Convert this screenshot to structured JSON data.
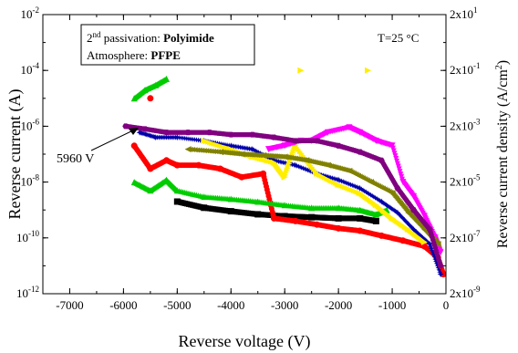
{
  "chart_data": {
    "type": "scatter",
    "xlabel": "Reverse voltage (V)",
    "ylabel_left": "Reverse current (A)",
    "ylabel_right": "Reverse current density (A/cm",
    "ylabel_right_sup": "2",
    "ylabel_right_end": ")",
    "xlim": [
      -7500,
      0
    ],
    "ylim": [
      1e-12,
      0.01
    ],
    "yscale": "log",
    "x_ticks": [
      {
        "value": -7000,
        "label": "-7000"
      },
      {
        "value": -6000,
        "label": "-6000"
      },
      {
        "value": -5000,
        "label": "-5000"
      },
      {
        "value": -4000,
        "label": "-4000"
      },
      {
        "value": -3000,
        "label": "-3000"
      },
      {
        "value": -2000,
        "label": "-2000"
      },
      {
        "value": -1000,
        "label": "-1000"
      },
      {
        "value": 0,
        "label": "0"
      }
    ],
    "y_ticks_left": [
      {
        "exp": -12,
        "base": "10",
        "sup": "-12"
      },
      {
        "exp": -10,
        "base": "10",
        "sup": "-10"
      },
      {
        "exp": -8,
        "base": "10",
        "sup": "-8"
      },
      {
        "exp": -6,
        "base": "10",
        "sup": "-6"
      },
      {
        "exp": -4,
        "base": "10",
        "sup": "-4"
      },
      {
        "exp": -2,
        "base": "10",
        "sup": "-2"
      }
    ],
    "y_ticks_right": [
      {
        "exp": -12,
        "base": "2x10",
        "sup": "-9"
      },
      {
        "exp": -10,
        "base": "2x10",
        "sup": "-7"
      },
      {
        "exp": -8,
        "base": "2x10",
        "sup": "-5"
      },
      {
        "exp": -6,
        "base": "2x10",
        "sup": "-3"
      },
      {
        "exp": -4,
        "base": "2x10",
        "sup": "-1"
      },
      {
        "exp": -2,
        "base": "2x10",
        "sup": "1"
      }
    ],
    "legend": {
      "line1_prefix": "2",
      "line1_sup": "nd",
      "line1_text": " passivation: ",
      "line1_bold": "Polyimide",
      "line2_text": "Atmosphere: ",
      "line2_bold": "PFPE"
    },
    "temperature_label": "T=25 °C",
    "annotation": {
      "text": "5960 V",
      "x": -5960,
      "y": 1e-06
    },
    "series": [
      {
        "color": "#000000",
        "marker": "square",
        "points": [
          [
            -5000,
            2e-09
          ],
          [
            -4500,
            1.2e-09
          ],
          [
            -4000,
            9e-10
          ],
          [
            -3500,
            7e-10
          ],
          [
            -3000,
            6e-10
          ],
          [
            -2500,
            5.5e-10
          ],
          [
            -2000,
            5e-10
          ],
          [
            -1600,
            5e-10
          ],
          [
            -1300,
            4e-10
          ]
        ]
      },
      {
        "color": "#ff0000",
        "marker": "circle",
        "points": [
          [
            -5800,
            2e-07
          ],
          [
            -5500,
            3e-08
          ],
          [
            -5200,
            6e-08
          ],
          [
            -5000,
            4e-08
          ],
          [
            -4600,
            4e-08
          ],
          [
            -4200,
            3e-08
          ],
          [
            -3800,
            1.5e-08
          ],
          [
            -3400,
            2e-08
          ],
          [
            -3200,
            5e-10
          ],
          [
            -2800,
            4e-10
          ],
          [
            -2400,
            3e-10
          ],
          [
            -2000,
            2.2e-10
          ],
          [
            -1600,
            1.8e-10
          ],
          [
            -1200,
            1.2e-10
          ],
          [
            -800,
            8e-11
          ],
          [
            -400,
            5e-11
          ],
          [
            -150,
            2e-11
          ],
          [
            -50,
            5e-12
          ],
          [
            -5500,
            1e-05
          ]
        ]
      },
      {
        "color": "#00cc00",
        "marker": "triangle",
        "points": [
          [
            -5800,
            1e-08
          ],
          [
            -5500,
            5e-09
          ],
          [
            -5200,
            1.2e-08
          ],
          [
            -5000,
            5e-09
          ],
          [
            -4500,
            3e-09
          ],
          [
            -4000,
            2.5e-09
          ],
          [
            -3500,
            2e-09
          ],
          [
            -3000,
            1.5e-09
          ],
          [
            -2500,
            1.2e-09
          ],
          [
            -2000,
            1.2e-09
          ],
          [
            -1600,
            1e-09
          ],
          [
            -1300,
            7e-10
          ],
          [
            -1100,
            1e-09
          ],
          [
            -5800,
            1e-05
          ],
          [
            -5600,
            2e-05
          ],
          [
            -5400,
            3e-05
          ],
          [
            -5200,
            5e-05
          ]
        ]
      },
      {
        "color": "#0000aa",
        "marker": "star",
        "points": [
          [
            -5700,
            6e-07
          ],
          [
            -5400,
            4e-07
          ],
          [
            -5000,
            4e-07
          ],
          [
            -4500,
            3e-07
          ],
          [
            -4000,
            2e-07
          ],
          [
            -3600,
            1.5e-07
          ],
          [
            -3200,
            6e-08
          ],
          [
            -2800,
            4e-08
          ],
          [
            -2400,
            2e-08
          ],
          [
            -2000,
            1.2e-08
          ],
          [
            -1600,
            6e-09
          ],
          [
            -1200,
            2e-09
          ],
          [
            -900,
            8e-10
          ],
          [
            -600,
            2e-10
          ],
          [
            -300,
            6e-11
          ],
          [
            -100,
            5e-12
          ]
        ]
      },
      {
        "color": "#ffee00",
        "marker": "triangle-right",
        "points": [
          [
            -4500,
            3e-07
          ],
          [
            -4000,
            1.5e-07
          ],
          [
            -3600,
            8e-08
          ],
          [
            -3200,
            5e-08
          ],
          [
            -3000,
            1.5e-08
          ],
          [
            -2800,
            2e-07
          ],
          [
            -2400,
            2e-08
          ],
          [
            -2000,
            8e-09
          ],
          [
            -1600,
            4e-09
          ],
          [
            -1300,
            1.5e-09
          ],
          [
            -1000,
            5e-10
          ],
          [
            -700,
            2e-10
          ],
          [
            -400,
            7e-11
          ],
          [
            -2700,
            0.0001
          ],
          [
            -1450,
            0.0001
          ]
        ]
      },
      {
        "color": "#ff00ff",
        "marker": "triangle-down",
        "points": [
          [
            -3300,
            1.5e-07
          ],
          [
            -3000,
            2e-07
          ],
          [
            -2700,
            3e-07
          ],
          [
            -2500,
            3e-07
          ],
          [
            -2200,
            6e-07
          ],
          [
            -1800,
            9e-07
          ],
          [
            -1600,
            6e-07
          ],
          [
            -1300,
            3e-07
          ],
          [
            -1000,
            2e-07
          ],
          [
            -800,
            1e-08
          ],
          [
            -600,
            3e-09
          ],
          [
            -400,
            6e-10
          ],
          [
            -200,
            1e-10
          ],
          [
            -100,
            3e-11
          ]
        ]
      },
      {
        "color": "#808000",
        "marker": "triangle-left",
        "points": [
          [
            -4800,
            1.5e-07
          ],
          [
            -4200,
            1.2e-07
          ],
          [
            -3800,
            1e-07
          ],
          [
            -3400,
            9e-08
          ],
          [
            -3000,
            8e-08
          ],
          [
            -2600,
            6e-08
          ],
          [
            -2200,
            4e-08
          ],
          [
            -1800,
            2.5e-08
          ],
          [
            -1400,
            1e-08
          ],
          [
            -1000,
            4e-09
          ],
          [
            -700,
            8e-10
          ],
          [
            -400,
            2e-10
          ],
          [
            -150,
            6e-11
          ]
        ]
      },
      {
        "color": "#800080",
        "marker": "hexagon",
        "points": [
          [
            -5960,
            1e-06
          ],
          [
            -5600,
            8e-07
          ],
          [
            -5200,
            6e-07
          ],
          [
            -4800,
            6e-07
          ],
          [
            -4400,
            6e-07
          ],
          [
            -4000,
            5e-07
          ],
          [
            -3600,
            5e-07
          ],
          [
            -3200,
            4e-07
          ],
          [
            -2800,
            3e-07
          ],
          [
            -2400,
            3e-07
          ],
          [
            -2000,
            2e-07
          ],
          [
            -1600,
            1.2e-07
          ],
          [
            -1200,
            6e-08
          ],
          [
            -900,
            6e-09
          ],
          [
            -600,
            1e-09
          ],
          [
            -300,
            2e-10
          ],
          [
            -100,
            1e-11
          ]
        ]
      }
    ]
  }
}
